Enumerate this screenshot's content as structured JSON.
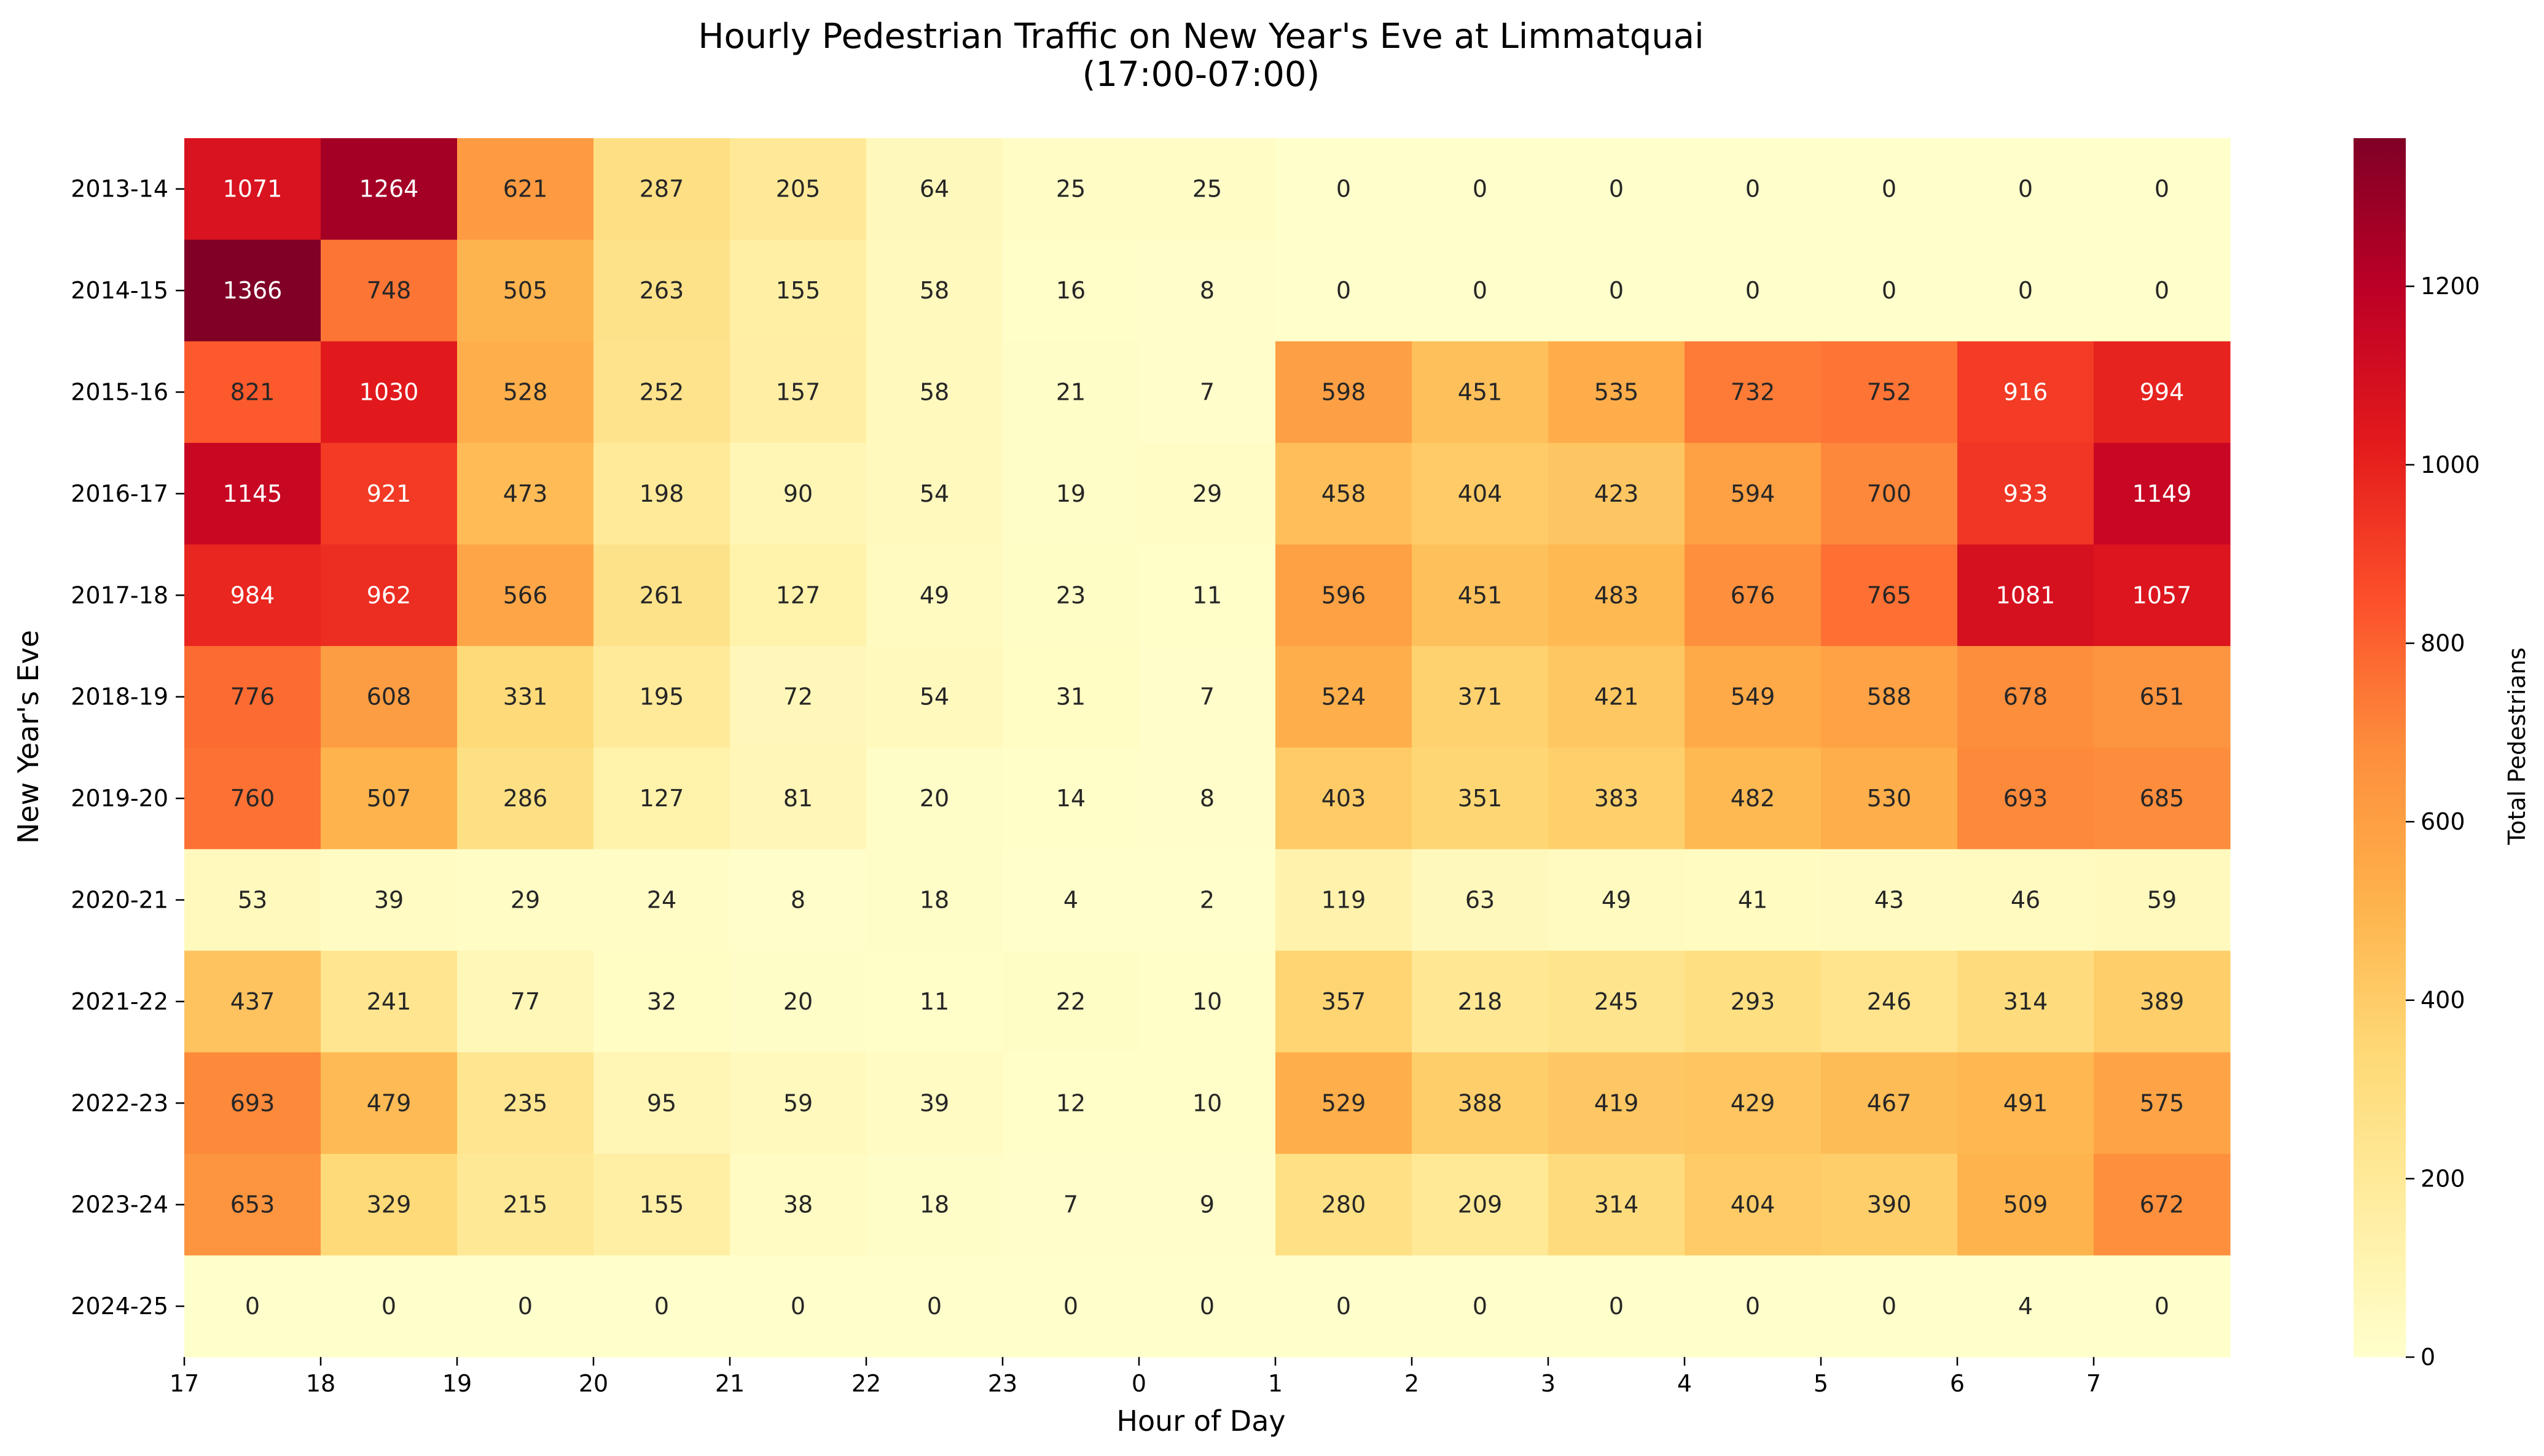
{
  "chart_data": {
    "type": "heatmap",
    "title": "Hourly Pedestrian Traffic on New Year's Eve at Limmatquai",
    "subtitle": "(17:00-07:00)",
    "xlabel": "Hour of Day",
    "ylabel": "New Year's Eve",
    "colorbar_label": "Total Pedestrians",
    "colormap": "YlOrRd",
    "color_range": [
      0,
      1366
    ],
    "colorbar_ticks": [
      0,
      200,
      400,
      600,
      800,
      1000,
      1200
    ],
    "x_tick_labels": [
      "17",
      "18",
      "19",
      "20",
      "21",
      "22",
      "23",
      "0",
      "1",
      "2",
      "3",
      "4",
      "5",
      "6",
      "7"
    ],
    "rows": [
      "2013-14",
      "2014-15",
      "2015-16",
      "2016-17",
      "2017-18",
      "2018-19",
      "2019-20",
      "2020-21",
      "2021-22",
      "2022-23",
      "2023-24",
      "2024-25"
    ],
    "values": [
      [
        1071,
        1264,
        621,
        287,
        205,
        64,
        25,
        25,
        0,
        0,
        0,
        0,
        0,
        0,
        0
      ],
      [
        1366,
        748,
        505,
        263,
        155,
        58,
        16,
        8,
        0,
        0,
        0,
        0,
        0,
        0,
        0
      ],
      [
        821,
        1030,
        528,
        252,
        157,
        58,
        21,
        7,
        598,
        451,
        535,
        732,
        752,
        916,
        994
      ],
      [
        1145,
        921,
        473,
        198,
        90,
        54,
        19,
        29,
        458,
        404,
        423,
        594,
        700,
        933,
        1149
      ],
      [
        984,
        962,
        566,
        261,
        127,
        49,
        23,
        11,
        596,
        451,
        483,
        676,
        765,
        1081,
        1057
      ],
      [
        776,
        608,
        331,
        195,
        72,
        54,
        31,
        7,
        524,
        371,
        421,
        549,
        588,
        678,
        651
      ],
      [
        760,
        507,
        286,
        127,
        81,
        20,
        14,
        8,
        403,
        351,
        383,
        482,
        530,
        693,
        685
      ],
      [
        53,
        39,
        29,
        24,
        8,
        18,
        4,
        2,
        119,
        63,
        49,
        41,
        43,
        46,
        59
      ],
      [
        437,
        241,
        77,
        32,
        20,
        11,
        22,
        10,
        357,
        218,
        245,
        293,
        246,
        314,
        389
      ],
      [
        693,
        479,
        235,
        95,
        59,
        39,
        12,
        10,
        529,
        388,
        419,
        429,
        467,
        491,
        575
      ],
      [
        653,
        329,
        215,
        155,
        38,
        18,
        7,
        9,
        280,
        209,
        314,
        404,
        390,
        509,
        672
      ],
      [
        0,
        0,
        0,
        0,
        0,
        0,
        0,
        0,
        0,
        0,
        0,
        0,
        0,
        4,
        0
      ]
    ],
    "grid": false,
    "legend": "colorbar-right"
  }
}
